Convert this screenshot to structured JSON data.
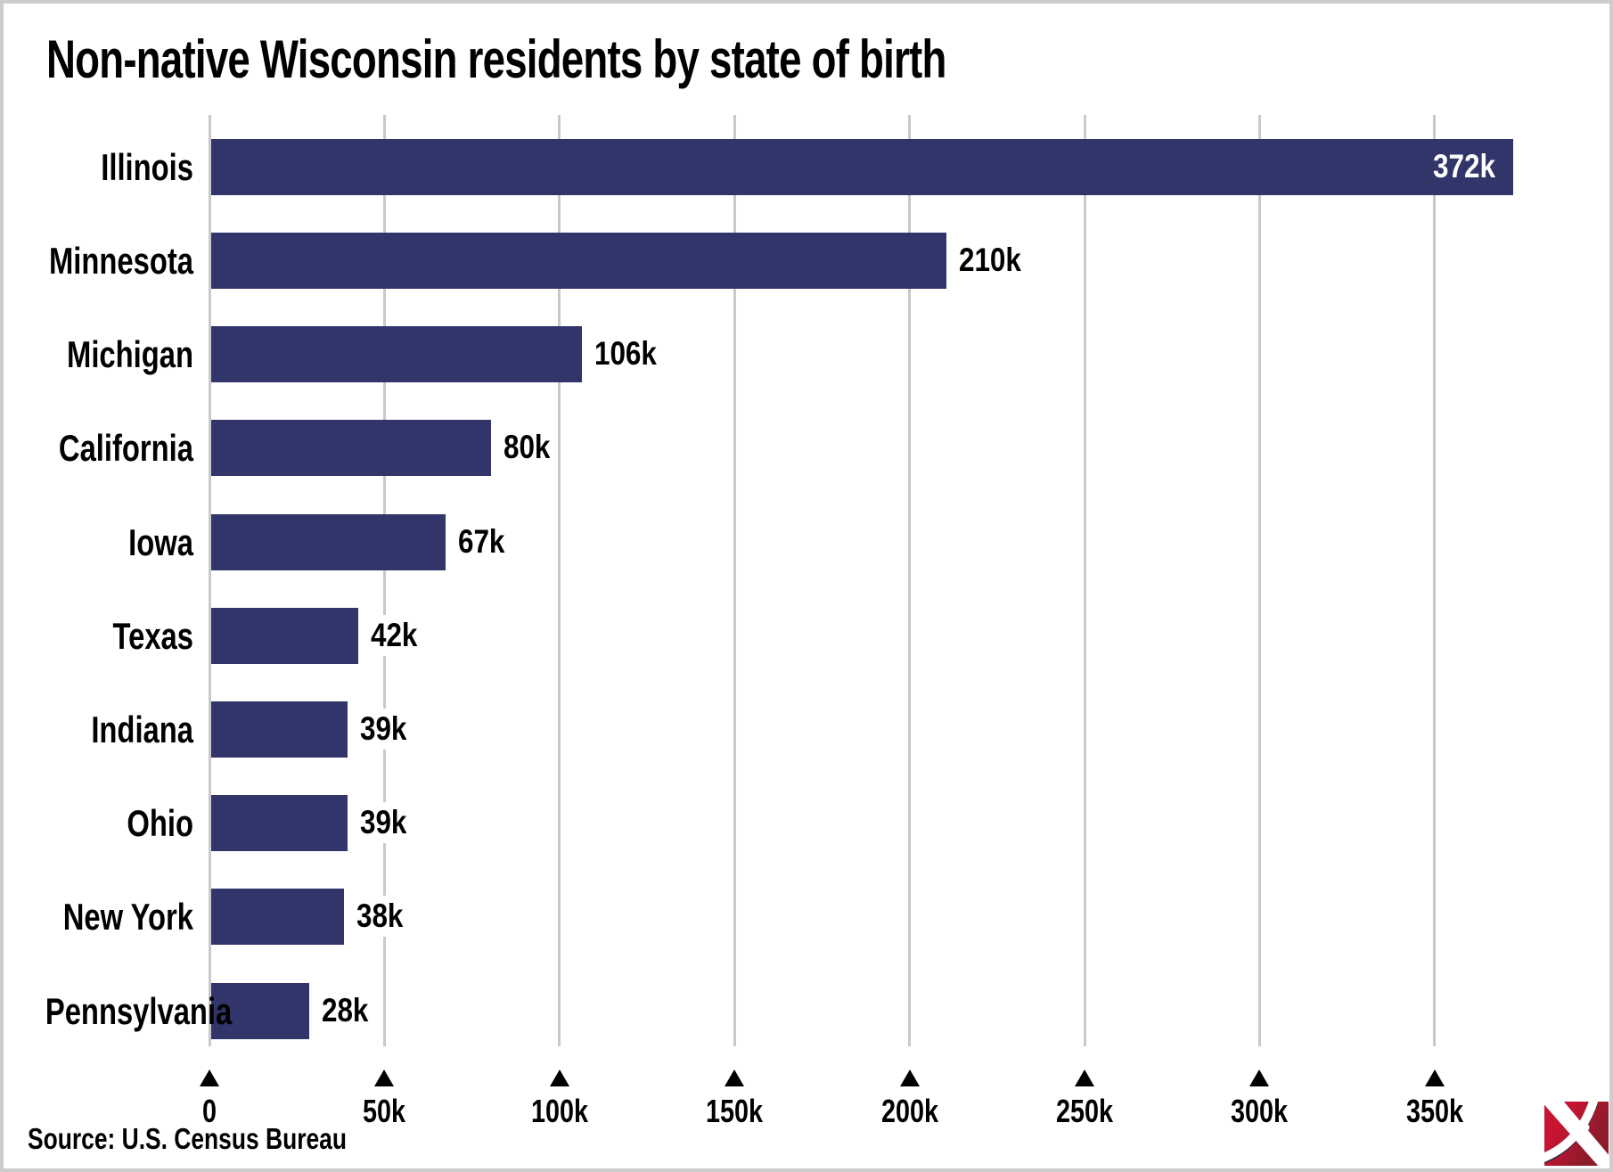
{
  "title": "Non-native Wisconsin residents by state of birth",
  "source": "Source: U.S. Census Bureau",
  "colors": {
    "bar": "#313569",
    "grid": "#c9c9c9",
    "text": "#000000",
    "value_on_bar": "#ffffff",
    "frame_border": "#cdcdcd",
    "logo_red_bright": "#c61431",
    "logo_red_dark": "#8e1b2b",
    "logo_shadow_navy": "#20264a"
  },
  "chart_data": {
    "type": "bar",
    "orientation": "horizontal",
    "title": "Non-native Wisconsin residents by state of birth",
    "xlabel": "",
    "ylabel": "",
    "categories": [
      "Illinois",
      "Minnesota",
      "Michigan",
      "California",
      "Iowa",
      "Texas",
      "Indiana",
      "Ohio",
      "New York",
      "Pennsylvania"
    ],
    "values": [
      372,
      210,
      106,
      80,
      67,
      42,
      39,
      39,
      38,
      28
    ],
    "value_labels": [
      "372k",
      "210k",
      "106k",
      "80k",
      "67k",
      "42k",
      "39k",
      "39k",
      "38k",
      "28k"
    ],
    "value_label_inside": [
      true,
      false,
      false,
      false,
      false,
      false,
      false,
      false,
      false,
      false
    ],
    "units": "thousands",
    "x_ticks": [
      "0",
      "50k",
      "100k",
      "150k",
      "200k",
      "250k",
      "300k",
      "350k"
    ],
    "x_tick_values": [
      0,
      50,
      100,
      150,
      200,
      250,
      300,
      350
    ],
    "xlim": [
      0,
      395
    ],
    "grid": true,
    "legend": "none"
  },
  "logo": {
    "name": "pickaxe-logo"
  }
}
